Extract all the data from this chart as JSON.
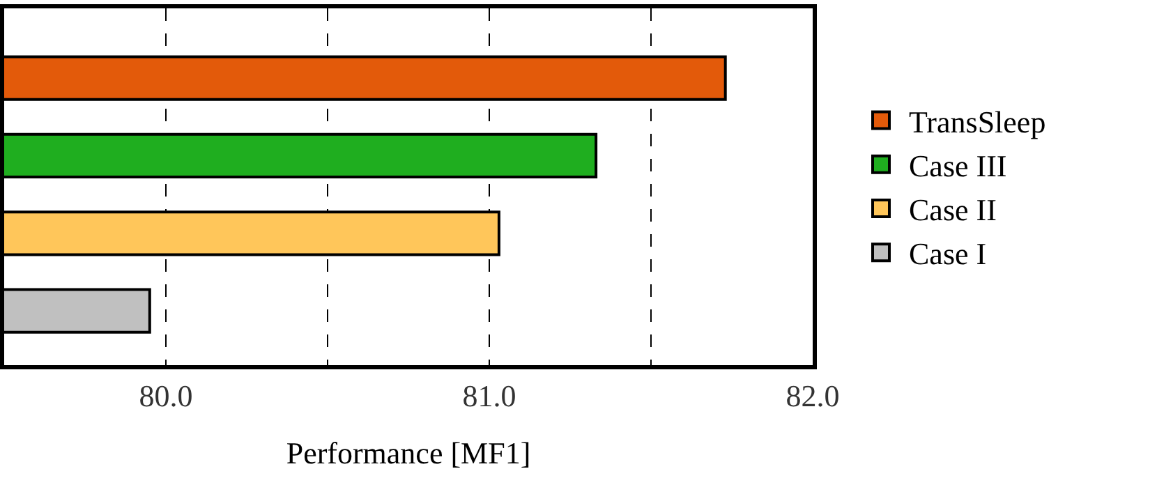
{
  "chart_data": {
    "type": "bar",
    "orientation": "horizontal",
    "xlabel": "Performance [MF1]",
    "categories": [
      null,
      null,
      null,
      null
    ],
    "series": [
      {
        "name": "TransSleep",
        "color": "#e35a0a",
        "values": [
          81.73,
          null,
          null,
          null
        ]
      },
      {
        "name": "Case III",
        "color": "#1fae1f",
        "values": [
          null,
          81.33,
          null,
          null
        ]
      },
      {
        "name": "Case II",
        "color": "#ffc65a",
        "values": [
          null,
          null,
          81.03,
          null
        ]
      },
      {
        "name": "Case I",
        "color": "#c0c0c0",
        "values": [
          null,
          null,
          null,
          79.95
        ]
      }
    ],
    "xlim": [
      79.5,
      82.0
    ],
    "xticks": [
      {
        "value": 80.0,
        "label": "80.0"
      },
      {
        "value": 80.5,
        "label": null
      },
      {
        "value": 81.0,
        "label": "81.0"
      },
      {
        "value": 81.5,
        "label": null
      },
      {
        "value": 82.0,
        "label": "82.0"
      }
    ],
    "grid": "x",
    "legend": "right",
    "tick_labels": "x"
  }
}
